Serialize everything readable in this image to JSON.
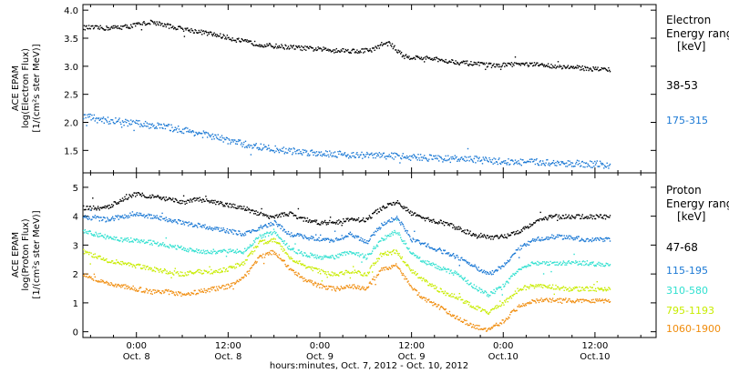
{
  "time_start": "2012-10-07T17:00:00",
  "time_end": "2012-10-10T20:00:00",
  "x_ticks": [
    {
      "t": 7,
      "time": "0:00",
      "date": "Oct. 8"
    },
    {
      "t": 19,
      "time": "12:00",
      "date": "Oct. 8"
    },
    {
      "t": 31,
      "time": "0:00",
      "date": "Oct. 9"
    },
    {
      "t": 43,
      "time": "12:00",
      "date": "Oct. 9"
    },
    {
      "t": 55,
      "time": "0:00",
      "date": "Oct.10"
    },
    {
      "t": 67,
      "time": "12:00",
      "date": "Oct.10"
    }
  ],
  "xlabel": "hours:minutes, Oct.  7, 2012 - Oct. 10, 2012",
  "chart_data": [
    {
      "type": "scatter",
      "panel": "top",
      "ylabel_lines": [
        "ACE EPAM",
        "log(Electron Flux)",
        "[1/(cm²s ster MeV)]"
      ],
      "ylim": [
        1.1,
        4.1
      ],
      "yticks": [
        "1.5",
        "2.0",
        "2.5",
        "3.0",
        "3.5",
        "4.0"
      ],
      "legend_title_lines": [
        "Electron",
        "Energy range",
        "[keV]"
      ],
      "series": [
        {
          "name": "38-53",
          "color": "#000000",
          "x": [
            0,
            3,
            6,
            7,
            9,
            12,
            15,
            18,
            21,
            24,
            27,
            30,
            33,
            36,
            38,
            39,
            40,
            41,
            42,
            45,
            48,
            51,
            54,
            57,
            60,
            63,
            66,
            69
          ],
          "y": [
            3.7,
            3.69,
            3.72,
            3.75,
            3.8,
            3.7,
            3.63,
            3.55,
            3.45,
            3.38,
            3.35,
            3.32,
            3.3,
            3.28,
            3.31,
            3.4,
            3.42,
            3.3,
            3.18,
            3.15,
            3.1,
            3.05,
            3.02,
            3.05,
            3.03,
            3.0,
            2.97,
            2.95
          ]
        },
        {
          "name": "175-315",
          "color": "#1a78d4",
          "x": [
            0,
            3,
            6,
            9,
            12,
            15,
            18,
            21,
            24,
            27,
            30,
            33,
            36,
            39,
            42,
            45,
            48,
            51,
            54,
            57,
            60,
            63,
            66,
            69
          ],
          "y": [
            2.12,
            2.05,
            2.0,
            1.96,
            1.9,
            1.82,
            1.72,
            1.62,
            1.55,
            1.5,
            1.47,
            1.45,
            1.42,
            1.42,
            1.4,
            1.38,
            1.36,
            1.35,
            1.32,
            1.3,
            1.3,
            1.28,
            1.27,
            1.25
          ]
        }
      ]
    },
    {
      "type": "scatter",
      "panel": "bottom",
      "ylabel_lines": [
        "ACE EPAM",
        "log(Proton Flux)",
        "[1/(cm²s ster MeV)]"
      ],
      "ylim": [
        -0.2,
        5.5
      ],
      "yticks": [
        "0",
        "1",
        "2",
        "3",
        "4",
        "5"
      ],
      "legend_title_lines": [
        "Proton",
        "Energy range",
        "[keV]"
      ],
      "series": [
        {
          "name": "47-68",
          "color": "#000000",
          "x": [
            0,
            3,
            5,
            7,
            9,
            11,
            13,
            15,
            17,
            19,
            21,
            24,
            27,
            29,
            31,
            33,
            35,
            37,
            39,
            41,
            43,
            45,
            47,
            49,
            51,
            53,
            55,
            57,
            59,
            61,
            63,
            66,
            69
          ],
          "y": [
            4.3,
            4.3,
            4.6,
            4.8,
            4.7,
            4.6,
            4.5,
            4.6,
            4.5,
            4.4,
            4.3,
            4.0,
            4.1,
            3.9,
            3.8,
            3.8,
            3.9,
            3.9,
            4.3,
            4.5,
            4.1,
            3.9,
            3.8,
            3.6,
            3.4,
            3.3,
            3.3,
            3.5,
            3.8,
            4.0,
            4.0,
            4.0,
            4.0
          ]
        },
        {
          "name": "115-195",
          "color": "#1a78d4",
          "x": [
            0,
            3,
            5,
            7,
            9,
            11,
            13,
            15,
            17,
            19,
            21,
            23,
            25,
            27,
            29,
            31,
            33,
            35,
            37,
            39,
            41,
            43,
            45,
            47,
            49,
            51,
            53,
            55,
            57,
            59,
            61,
            63,
            66,
            69
          ],
          "y": [
            4.0,
            3.9,
            4.0,
            4.1,
            4.0,
            3.9,
            3.8,
            3.7,
            3.6,
            3.5,
            3.4,
            3.6,
            3.8,
            3.4,
            3.3,
            3.2,
            3.2,
            3.4,
            3.1,
            3.7,
            4.0,
            3.2,
            3.0,
            2.8,
            2.6,
            2.3,
            2.0,
            2.3,
            2.9,
            3.2,
            3.3,
            3.3,
            3.2,
            3.2
          ]
        },
        {
          "name": "310-580",
          "color": "#30e0d0",
          "x": [
            0,
            3,
            5,
            7,
            9,
            11,
            13,
            15,
            17,
            19,
            21,
            23,
            25,
            27,
            29,
            31,
            33,
            35,
            37,
            39,
            41,
            43,
            45,
            47,
            49,
            51,
            53,
            55,
            57,
            59,
            61,
            63,
            66,
            69
          ],
          "y": [
            3.5,
            3.3,
            3.2,
            3.2,
            3.1,
            3.0,
            2.9,
            2.8,
            2.8,
            2.8,
            2.8,
            3.3,
            3.5,
            2.9,
            2.7,
            2.6,
            2.6,
            2.8,
            2.6,
            3.2,
            3.5,
            2.7,
            2.4,
            2.2,
            2.0,
            1.6,
            1.3,
            1.6,
            2.2,
            2.4,
            2.4,
            2.4,
            2.4,
            2.3
          ]
        },
        {
          "name": "795-1193",
          "color": "#c8ec00",
          "x": [
            0,
            3,
            5,
            7,
            9,
            11,
            13,
            15,
            17,
            19,
            21,
            23,
            25,
            27,
            29,
            31,
            33,
            35,
            37,
            39,
            41,
            43,
            45,
            47,
            49,
            51,
            53,
            55,
            57,
            59,
            61,
            63,
            66,
            69
          ],
          "y": [
            2.8,
            2.5,
            2.4,
            2.3,
            2.2,
            2.1,
            2.0,
            2.1,
            2.1,
            2.2,
            2.4,
            3.1,
            3.2,
            2.6,
            2.3,
            2.1,
            2.0,
            2.1,
            2.0,
            2.7,
            2.8,
            2.1,
            1.7,
            1.4,
            1.2,
            0.9,
            0.7,
            1.0,
            1.5,
            1.6,
            1.6,
            1.5,
            1.5,
            1.5
          ]
        },
        {
          "name": "1060-1900",
          "color": "#f08c0c",
          "x": [
            0,
            3,
            5,
            7,
            9,
            11,
            13,
            15,
            17,
            19,
            21,
            23,
            25,
            27,
            29,
            31,
            33,
            35,
            37,
            39,
            41,
            43,
            45,
            47,
            49,
            51,
            53,
            55,
            57,
            59,
            61,
            63,
            66,
            69
          ],
          "y": [
            2.0,
            1.7,
            1.6,
            1.5,
            1.4,
            1.4,
            1.3,
            1.4,
            1.5,
            1.6,
            1.9,
            2.6,
            2.8,
            2.2,
            1.8,
            1.6,
            1.5,
            1.6,
            1.5,
            2.2,
            2.3,
            1.5,
            1.1,
            0.8,
            0.5,
            0.2,
            0.1,
            0.4,
            0.9,
            1.1,
            1.1,
            1.1,
            1.1,
            1.1
          ]
        }
      ]
    }
  ]
}
